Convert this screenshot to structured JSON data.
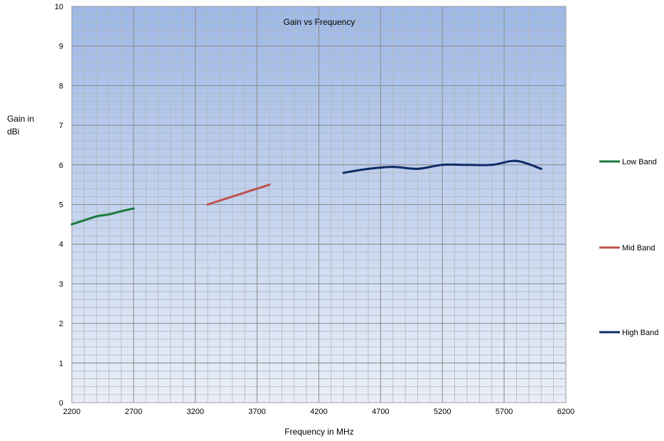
{
  "chart_data": {
    "type": "line",
    "title": "Gain vs Frequency",
    "xlabel": "Frequency in MHz",
    "ylabel": "Gain in dBi",
    "xlim": [
      2200,
      6200
    ],
    "ylim": [
      0,
      10
    ],
    "x_ticks": [
      "2200",
      "2700",
      "3200",
      "3700",
      "4200",
      "4700",
      "5200",
      "5700",
      "6200"
    ],
    "y_ticks": [
      "0",
      "1",
      "2",
      "3",
      "4",
      "5",
      "6",
      "7",
      "8",
      "9",
      "10"
    ],
    "grid": true,
    "legend": "right",
    "series": [
      {
        "name": "Low Band",
        "color": "#1a7a3c",
        "points": [
          [
            2200,
            4.5
          ],
          [
            2300,
            4.6
          ],
          [
            2400,
            4.7
          ],
          [
            2500,
            4.75
          ],
          [
            2600,
            4.83
          ],
          [
            2700,
            4.9
          ]
        ]
      },
      {
        "name": "Mid Band",
        "color": "#c0504d",
        "points": [
          [
            3300,
            5.0
          ],
          [
            3400,
            5.1
          ],
          [
            3500,
            5.2
          ],
          [
            3600,
            5.3
          ],
          [
            3700,
            5.4
          ],
          [
            3800,
            5.5
          ]
        ]
      },
      {
        "name": "High Band",
        "color": "#0f2a66",
        "points": [
          [
            4400,
            5.8
          ],
          [
            4600,
            5.9
          ],
          [
            4800,
            5.95
          ],
          [
            5000,
            5.9
          ],
          [
            5200,
            6.0
          ],
          [
            5400,
            6.0
          ],
          [
            5600,
            6.0
          ],
          [
            5800,
            6.1
          ],
          [
            6000,
            5.9
          ]
        ]
      }
    ]
  }
}
